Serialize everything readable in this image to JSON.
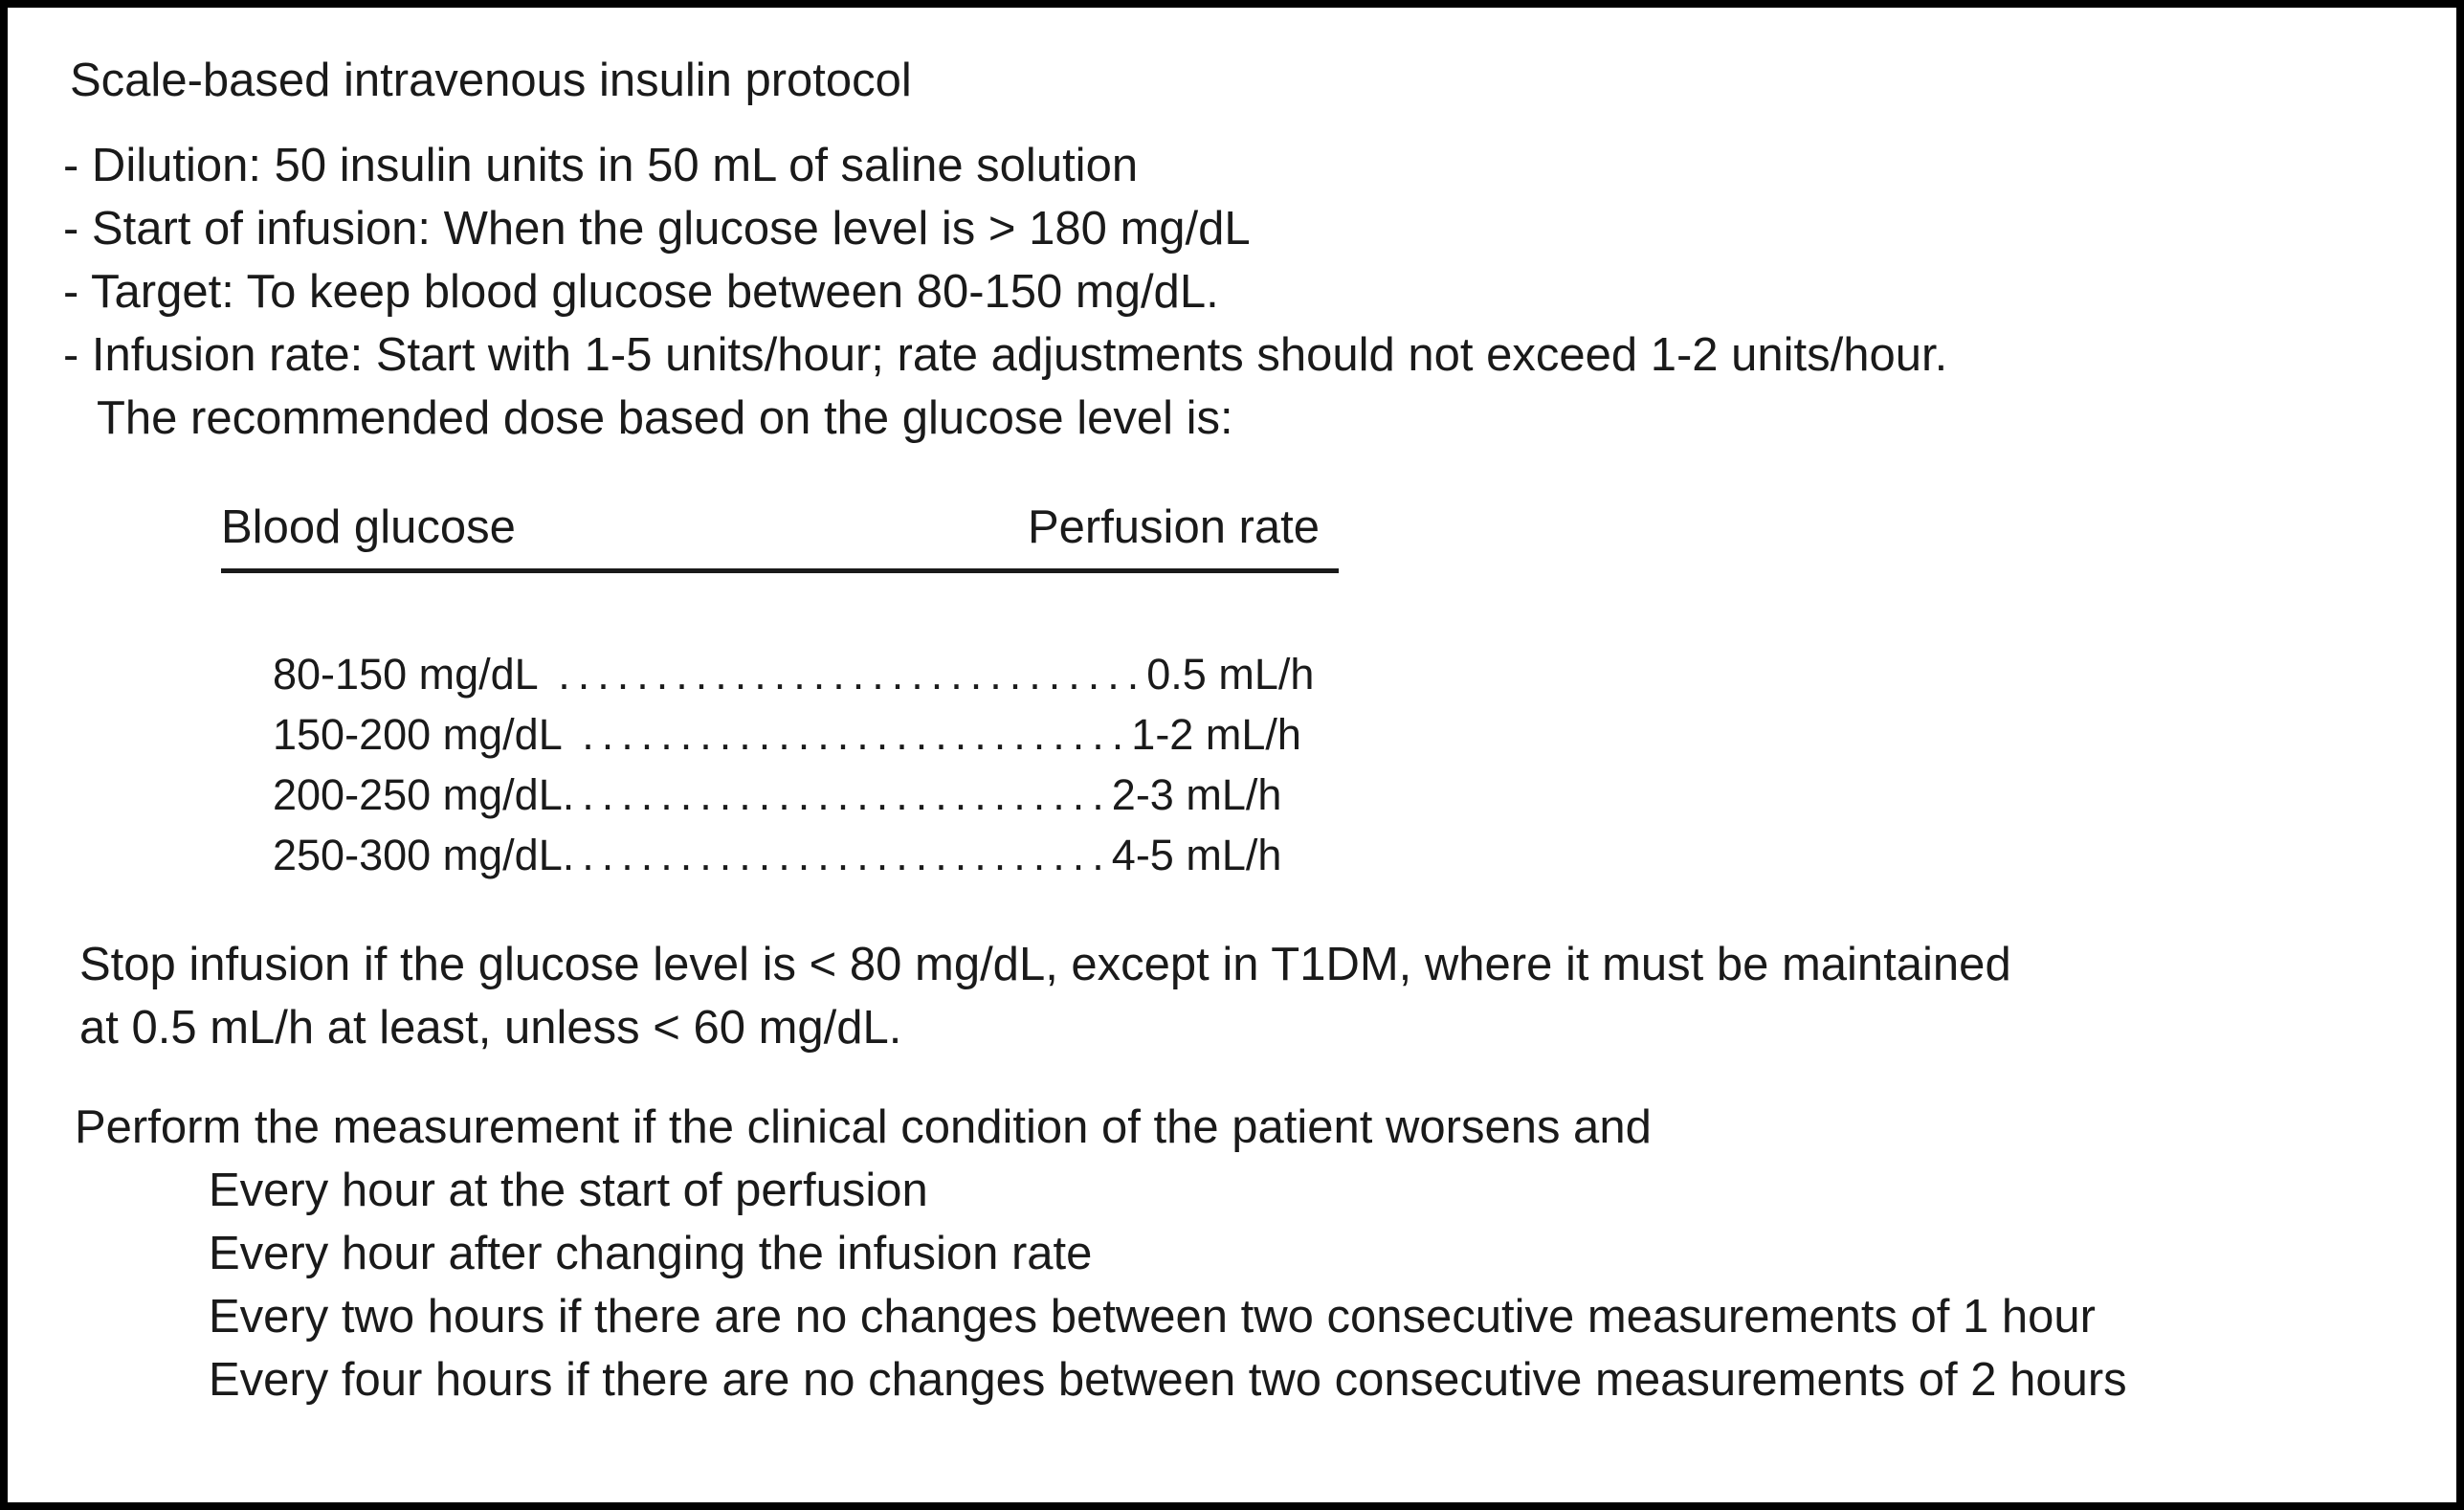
{
  "document": {
    "title": "Scale-based intravenous insulin protocol",
    "bullets": [
      "- Dilution: 50 insulin units in 50 mL of saline solution",
      "- Start of infusion: When the glucose level is > 180 mg/dL",
      "- Target: To keep blood glucose between 80-150 mg/dL.",
      "- Infusion rate: Start with 1-5 units/hour; rate adjustments should not exceed 1-2 units/hour."
    ],
    "table_intro": "The recommended dose based on the glucose level is:",
    "dose_table": {
      "headers": [
        "Blood glucose",
        "Perfusion rate"
      ],
      "rows": [
        {
          "range": "80-150 mg/dL",
          "leader": " ..............................",
          "rate": "0.5 mL/h"
        },
        {
          "range": "150-200 mg/dL",
          "leader": " ............................",
          "rate": "1-2 mL/h"
        },
        {
          "range": "200-250 mg/dL",
          "leader": "............................",
          "rate": "2-3 mL/h"
        },
        {
          "range": "250-300 mg/dL",
          "leader": "............................",
          "rate": "4-5 mL/h"
        }
      ]
    },
    "stop_rule_lines": [
      "Stop infusion if the glucose level is < 80 mg/dL, except in T1DM, where it must be maintained",
      "at 0.5 mL/h at least, unless < 60 mg/dL."
    ],
    "measurement_schedule": {
      "lead": "Perform the measurement if the clinical condition of the patient worsens and",
      "items": [
        "Every hour at the start of perfusion",
        "Every hour after changing the infusion rate",
        "Every two hours if there are no changes between two consecutive measurements of 1 hour",
        "Every four hours if there are no changes between two consecutive measurements of 2 hours"
      ]
    }
  }
}
